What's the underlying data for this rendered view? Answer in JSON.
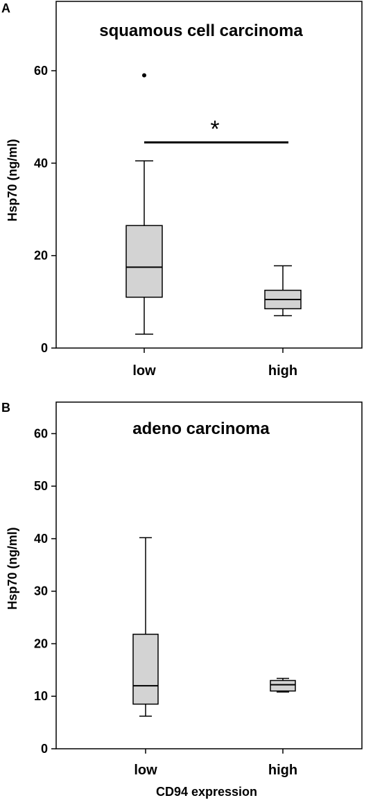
{
  "chart_data": [
    {
      "type": "box",
      "panel_label": "A",
      "title": "squamous cell  carcinoma",
      "ylabel": "Hsp70 (ng/ml)",
      "xlabel": "",
      "ylim": [
        0,
        75
      ],
      "yticks": [
        0,
        20,
        40,
        60
      ],
      "categories": [
        "low",
        "high"
      ],
      "boxes": [
        {
          "category": "low",
          "whisker_low": 3,
          "q1": 11,
          "median": 17.5,
          "q3": 26.5,
          "whisker_high": 40.5,
          "outliers": [
            59
          ]
        },
        {
          "category": "high",
          "whisker_low": 7,
          "q1": 8.5,
          "median": 10.5,
          "q3": 12.5,
          "whisker_high": 17.8,
          "outliers": []
        }
      ],
      "significance": {
        "label": "*",
        "y": 44.5,
        "from": "low",
        "to": "high"
      },
      "box_fill": "#d3d3d3"
    },
    {
      "type": "box",
      "panel_label": "B",
      "title": "adeno carcinoma",
      "ylabel": "Hsp70 (ng/ml)",
      "xlabel": "CD94 expression",
      "ylim": [
        0,
        66
      ],
      "yticks": [
        0,
        10,
        20,
        30,
        40,
        50,
        60
      ],
      "categories": [
        "low",
        "high"
      ],
      "boxes": [
        {
          "category": "low",
          "whisker_low": 6.2,
          "q1": 8.5,
          "median": 12,
          "q3": 21.8,
          "whisker_high": 40.2,
          "outliers": []
        },
        {
          "category": "high",
          "whisker_low": 10.8,
          "q1": 11,
          "median": 12.2,
          "q3": 13,
          "whisker_high": 13.4,
          "outliers": []
        }
      ],
      "box_fill": "#d3d3d3"
    }
  ]
}
